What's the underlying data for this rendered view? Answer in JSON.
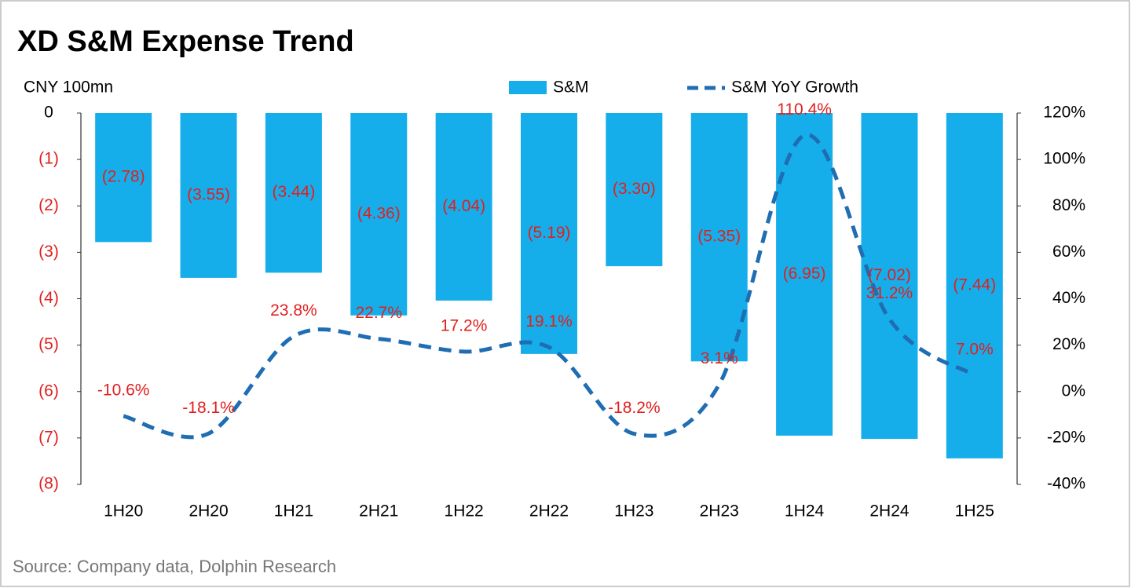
{
  "chart_data": {
    "type": "bar_line",
    "title": "XD S&M Expense Trend",
    "y_label": "CNY 100mn",
    "source": "Source:  Company data, Dolphin Research",
    "categories": [
      "1H20",
      "2H20",
      "1H21",
      "2H21",
      "1H22",
      "2H22",
      "1H23",
      "2H23",
      "1H24",
      "2H24",
      "1H25"
    ],
    "series": [
      {
        "name": "S&M",
        "type": "bar",
        "color": "#16aeea",
        "values": [
          -2.78,
          -3.55,
          -3.44,
          -4.36,
          -4.04,
          -5.19,
          -3.3,
          -5.35,
          -6.95,
          -7.02,
          -7.44
        ],
        "value_labels": [
          "(2.78)",
          "(3.55)",
          "(3.44)",
          "(4.36)",
          "(4.04)",
          "(5.19)",
          "(3.30)",
          "(5.35)",
          "(6.95)",
          "(7.02)",
          "(7.44)"
        ]
      },
      {
        "name": "S&M YoY Growth",
        "type": "line",
        "axis": "y2",
        "color": "#1f6db3",
        "dashed": true,
        "smooth": true,
        "values": [
          -10.6,
          -18.1,
          23.8,
          22.7,
          17.2,
          19.1,
          -18.2,
          3.1,
          110.4,
          31.2,
          7.0
        ],
        "value_labels": [
          "-10.6%",
          "-18.1%",
          "23.8%",
          "22.7%",
          "17.2%",
          "19.1%",
          "-18.2%",
          "3.1%",
          "110.4%",
          "31.2%",
          "7.0%"
        ]
      }
    ],
    "ylim": [
      -8,
      0
    ],
    "yticks": [
      0,
      {
        "value": -1,
        "label": "(1)"
      },
      {
        "value": -2,
        "label": "(2)"
      },
      {
        "value": -3,
        "label": "(3)"
      },
      {
        "value": -4,
        "label": "(4)"
      },
      {
        "value": -5,
        "label": "(5)"
      },
      {
        "value": -6,
        "label": "(6)"
      },
      {
        "value": -7,
        "label": "(7)"
      },
      {
        "value": -8,
        "label": "(8)"
      }
    ],
    "y2lim": [
      -40,
      120
    ],
    "y2ticks": [
      {
        "value": 120,
        "label": "120%"
      },
      {
        "value": 100,
        "label": "100%"
      },
      {
        "value": 80,
        "label": "80%"
      },
      {
        "value": 60,
        "label": "60%"
      },
      {
        "value": 40,
        "label": "40%"
      },
      {
        "value": 20,
        "label": "20%"
      },
      {
        "value": 0,
        "label": "0%"
      },
      {
        "value": -20,
        "label": "-20%"
      },
      {
        "value": -40,
        "label": "-40%"
      }
    ],
    "data_label_color": "#e0201f",
    "negative_tick_color": "#e0201f",
    "legend": "top"
  }
}
